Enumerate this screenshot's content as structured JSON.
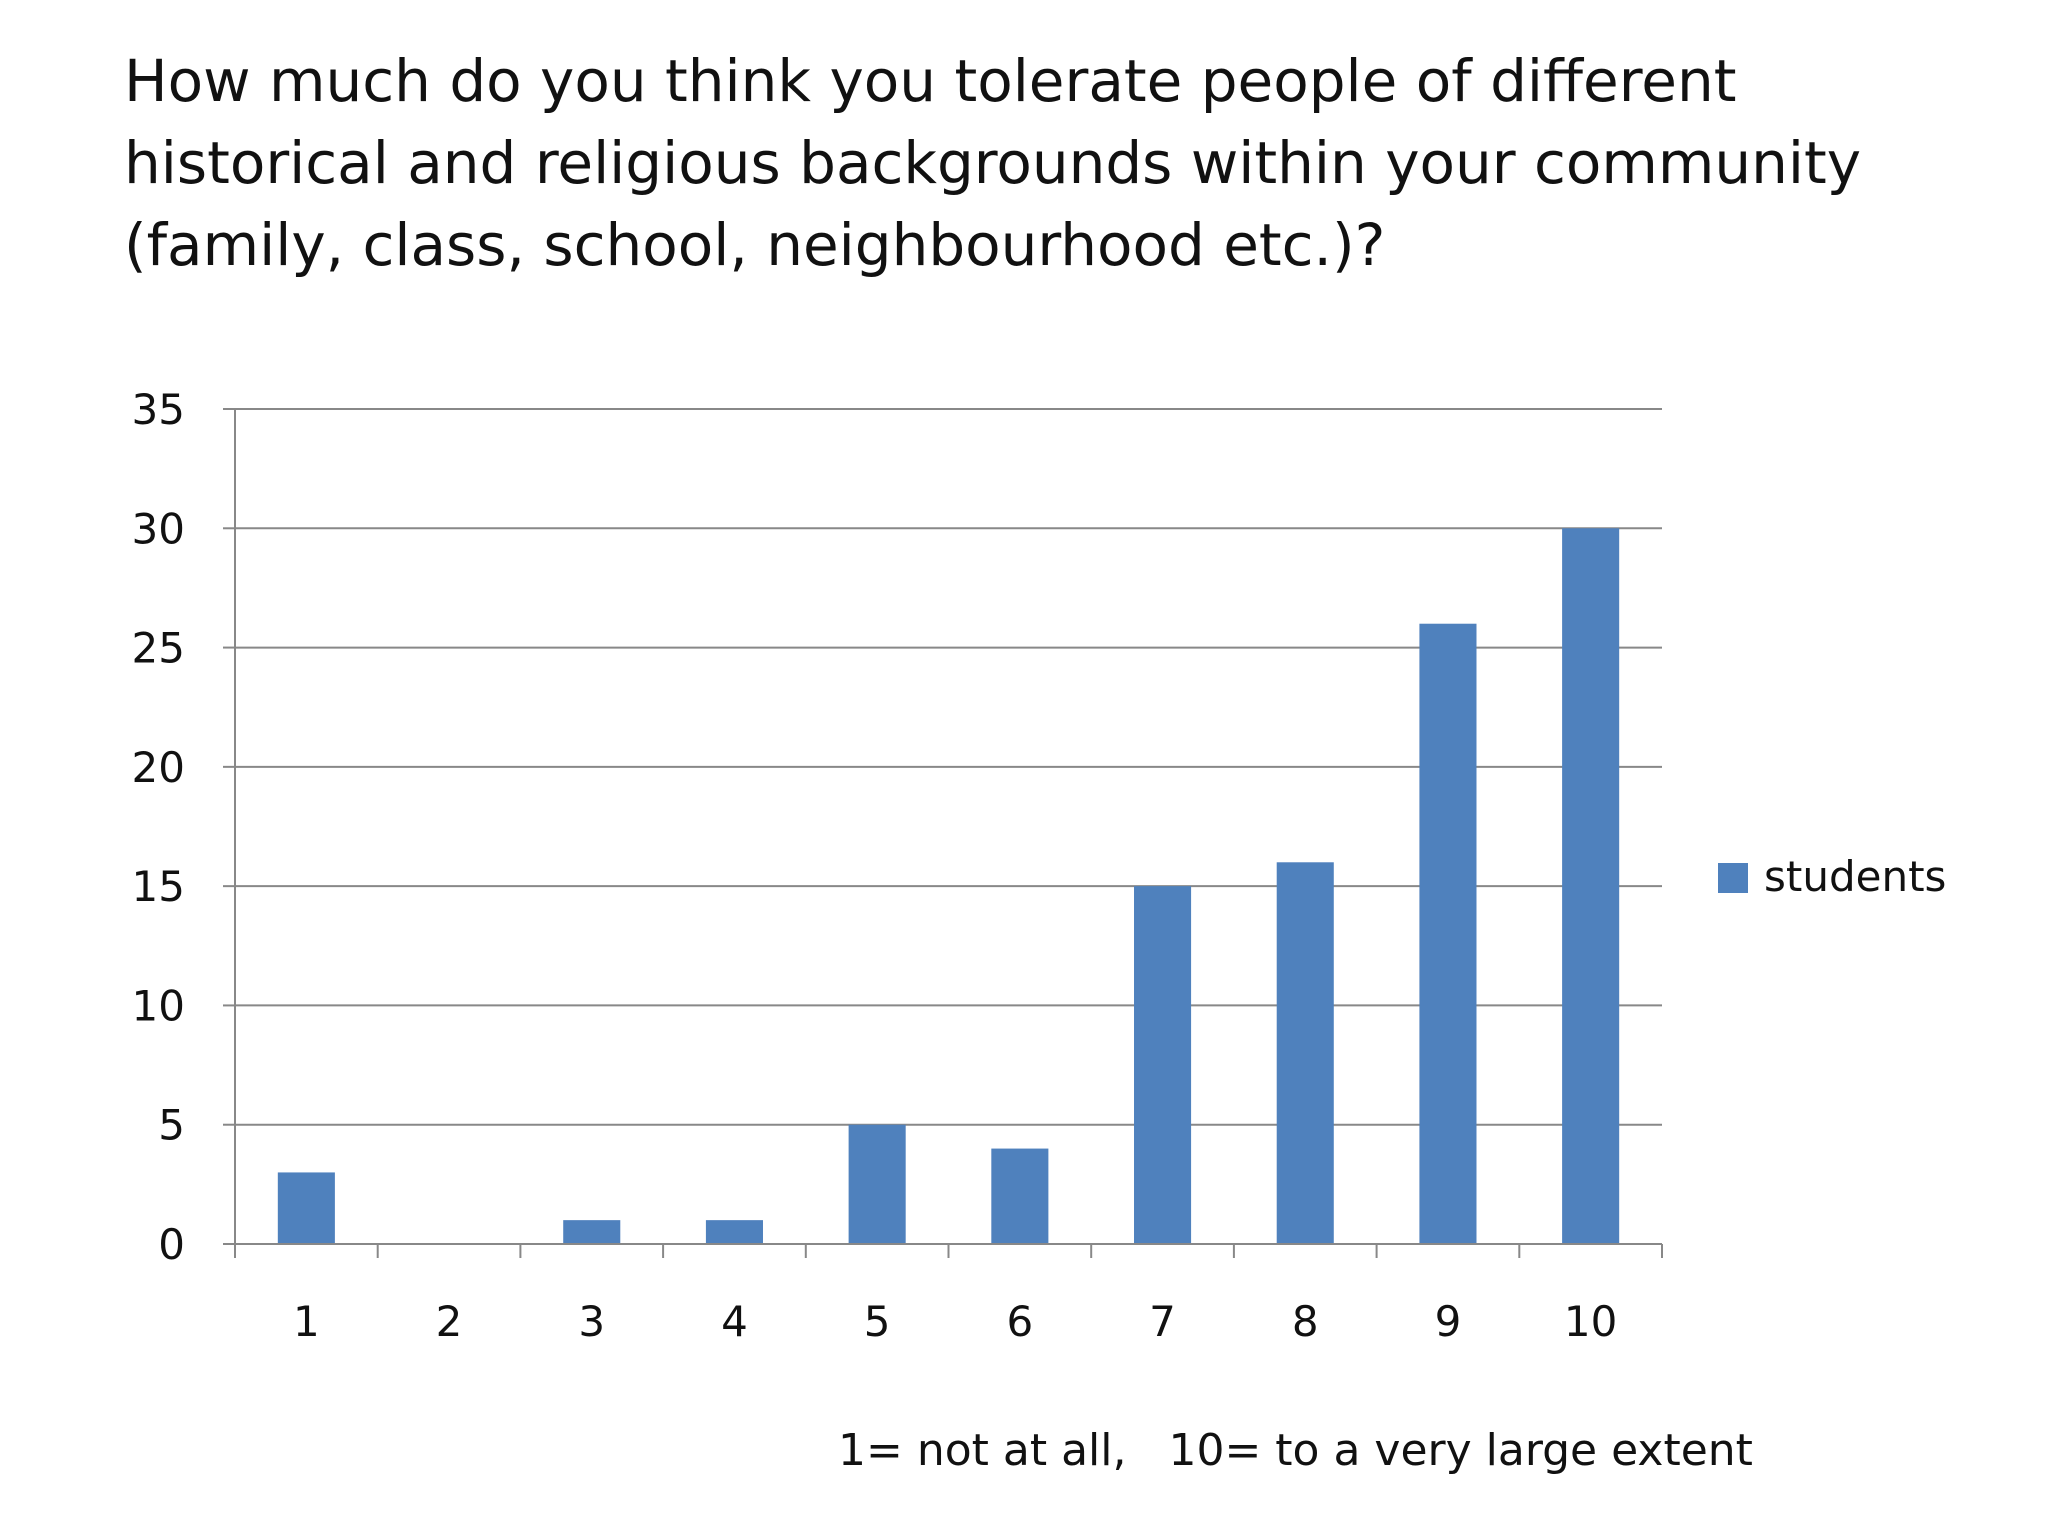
{
  "slide": {
    "title_lines": [
      "How much do you think you tolerate people of different",
      "historical and religious backgrounds within your community",
      "(family, class, school, neighbourhood etc.)?"
    ],
    "footnote": "1= not at all,   10= to a very large extent"
  },
  "chart_data": {
    "type": "bar",
    "title": "How much do you think you tolerate people of different historical and religious backgrounds within your community (family, class, school, neighbourhood etc.)?",
    "xlabel": "1= not at all,   10= to a very large extent",
    "ylabel": "",
    "categories": [
      "1",
      "2",
      "3",
      "4",
      "5",
      "6",
      "7",
      "8",
      "9",
      "10"
    ],
    "series": [
      {
        "name": "students",
        "values": [
          3,
          0,
          1,
          1,
          5,
          4,
          15,
          16,
          26,
          30
        ],
        "color": "#4f81bd"
      }
    ],
    "ylim": [
      0,
      35
    ],
    "yticks": [
      0,
      5,
      10,
      15,
      20,
      25,
      30,
      35
    ],
    "grid": true,
    "legend": "right"
  }
}
